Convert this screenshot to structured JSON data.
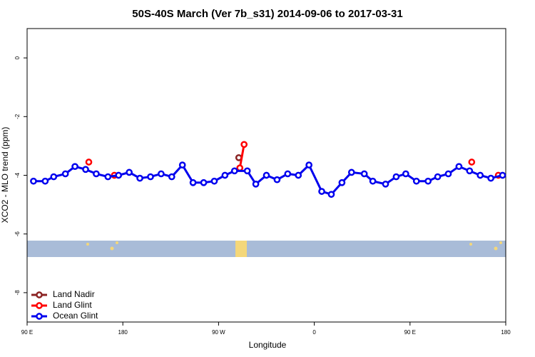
{
  "chart_data": {
    "type": "line",
    "title": "50S-40S March (Ver 7b_s31)   2014-09-06 to 2017-03-31",
    "xlabel": "Longitude",
    "ylabel": "XCO2 - MLO trend (ppm)",
    "xlim": [
      90,
      540
    ],
    "ylim": [
      -9,
      1
    ],
    "xticks": [
      {
        "value": 90,
        "label": "90 E"
      },
      180,
      {
        "value": 270,
        "label": "90 W"
      },
      {
        "value": 360,
        "label": "0"
      },
      {
        "value": 450,
        "label": "90 E"
      },
      {
        "value": 540,
        "label": "180"
      }
    ],
    "yticks": [
      0,
      -2,
      -4,
      -6,
      -8
    ],
    "legend": "bottom-left",
    "series": [
      {
        "name": "Land Nadir",
        "color": "#8b2323",
        "x": [
          289
        ],
        "values": [
          -3.4
        ]
      },
      {
        "name": "Land Glint",
        "color": "#ff0000",
        "x": [
          148,
          null,
          172,
          null,
          290,
          294,
          null,
          508,
          null,
          533
        ],
        "values": [
          -3.55,
          null,
          -4.0,
          null,
          -3.75,
          -2.95,
          null,
          -3.55,
          null,
          -4.0
        ]
      },
      {
        "name": "Ocean Glint",
        "color": "#0000ee",
        "x": [
          96,
          107,
          115,
          126,
          135,
          145,
          155,
          166,
          176,
          186,
          196,
          206,
          216,
          226,
          236,
          246,
          256,
          266,
          276,
          285,
          297,
          305,
          315,
          325,
          335,
          345,
          355,
          367,
          376,
          386,
          395,
          407,
          415,
          427,
          437,
          446,
          456,
          467,
          476,
          486,
          496,
          506,
          516,
          526,
          537
        ],
        "values": [
          -4.2,
          -4.2,
          -4.05,
          -3.95,
          -3.7,
          -3.8,
          -3.95,
          -4.05,
          -4.0,
          -3.9,
          -4.1,
          -4.05,
          -3.95,
          -4.05,
          -3.65,
          -4.25,
          -4.25,
          -4.2,
          -4.0,
          -3.85,
          -3.85,
          -4.3,
          -4.0,
          -4.15,
          -3.95,
          -4.0,
          -3.65,
          -4.55,
          -4.65,
          -4.25,
          -3.9,
          -3.95,
          -4.2,
          -4.3,
          -4.05,
          -3.95,
          -4.2,
          -4.2,
          -4.05,
          -3.95,
          -3.7,
          -3.85,
          -4.0,
          -4.1,
          -4.0
        ]
      }
    ]
  }
}
